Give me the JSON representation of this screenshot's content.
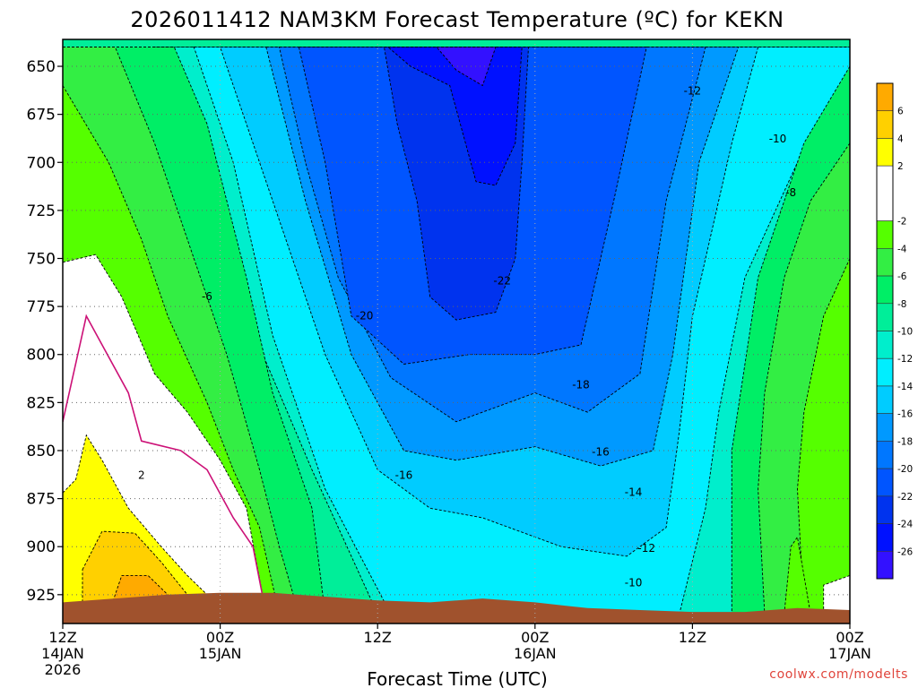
{
  "chart_data": {
    "type": "heatmap",
    "title": "2026011412 NAM3KM Forecast Temperature (ºC) for KEKN",
    "xlabel": "Forecast Time (UTC)",
    "credit": "coolwx.com/modelts",
    "x_ticks": [
      {
        "hours": 0,
        "line1": "12Z",
        "line2": "14JAN",
        "line3": "2026"
      },
      {
        "hours": 12,
        "line1": "00Z",
        "line2": "15JAN",
        "line3": ""
      },
      {
        "hours": 24,
        "line1": "12Z",
        "line2": "",
        "line3": ""
      },
      {
        "hours": 36,
        "line1": "00Z",
        "line2": "16JAN",
        "line3": ""
      },
      {
        "hours": 48,
        "line1": "12Z",
        "line2": "",
        "line3": ""
      },
      {
        "hours": 60,
        "line1": "00Z",
        "line2": "17JAN",
        "line3": ""
      }
    ],
    "xlim_hours": [
      0,
      60
    ],
    "y_ticks": [
      "650",
      "675",
      "700",
      "725",
      "750",
      "775",
      "800",
      "825",
      "850",
      "875",
      "900",
      "925"
    ],
    "ylim_hpa": [
      940,
      636
    ],
    "y_inverted": true,
    "colorbar": {
      "labels": [
        "6",
        "4",
        "2",
        "-2",
        "-4",
        "-6",
        "-8",
        "-10",
        "-12",
        "-14",
        "-16",
        "-18",
        "-20",
        "-22",
        "-24",
        "-26"
      ],
      "bins": [
        {
          "lo": 6,
          "hi": 8,
          "color": "#ffaa00"
        },
        {
          "lo": 4,
          "hi": 6,
          "color": "#ffd000"
        },
        {
          "lo": 2,
          "hi": 4,
          "color": "#ffff00"
        },
        {
          "lo": -2,
          "hi": 2,
          "color": "#ffffff"
        },
        {
          "lo": -4,
          "hi": -2,
          "color": "#55ff00"
        },
        {
          "lo": -6,
          "hi": -4,
          "color": "#33ee44"
        },
        {
          "lo": -8,
          "hi": -6,
          "color": "#00ee66"
        },
        {
          "lo": -10,
          "hi": -8,
          "color": "#00ee99"
        },
        {
          "lo": -12,
          "hi": -10,
          "color": "#00eecc"
        },
        {
          "lo": -14,
          "hi": -12,
          "color": "#00eeff"
        },
        {
          "lo": -16,
          "hi": -14,
          "color": "#00ccff"
        },
        {
          "lo": -18,
          "hi": -16,
          "color": "#0099ff"
        },
        {
          "lo": -20,
          "hi": -18,
          "color": "#0077ff"
        },
        {
          "lo": -22,
          "hi": -20,
          "color": "#0055ff"
        },
        {
          "lo": -24,
          "hi": -22,
          "color": "#0033ee"
        },
        {
          "lo": -26,
          "hi": -24,
          "color": "#0011ff"
        },
        {
          "lo": -28,
          "hi": -26,
          "color": "#3311ff"
        }
      ]
    },
    "contour_labels": [
      {
        "text": "-12",
        "hours": 48.0,
        "hpa": 663
      },
      {
        "text": "-10",
        "hours": 54.5,
        "hpa": 688
      },
      {
        "text": "-8",
        "hours": 55.5,
        "hpa": 716
      },
      {
        "text": "-6",
        "hours": 11.0,
        "hpa": 770
      },
      {
        "text": "-20",
        "hours": 23.0,
        "hpa": 780
      },
      {
        "text": "-22",
        "hours": 33.5,
        "hpa": 762
      },
      {
        "text": "-18",
        "hours": 39.5,
        "hpa": 816
      },
      {
        "text": "-16",
        "hours": 41.0,
        "hpa": 851
      },
      {
        "text": "-16",
        "hours": 26.0,
        "hpa": 863
      },
      {
        "text": "-14",
        "hours": 43.5,
        "hpa": 872
      },
      {
        "text": "-12",
        "hours": 44.5,
        "hpa": 901
      },
      {
        "text": "-10",
        "hours": 43.5,
        "hpa": 919
      },
      {
        "text": "2",
        "hours": 6.0,
        "hpa": 863
      }
    ],
    "bands": [
      {
        "t": "#00ee99",
        "pts": [
          [
            0,
            640
          ],
          [
            60,
            640
          ],
          [
            60,
            935
          ],
          [
            0,
            935
          ]
        ]
      },
      {
        "t": "#00eecc",
        "pts": [
          [
            7,
            640
          ],
          [
            60,
            640
          ],
          [
            60,
            935
          ],
          [
            24,
            935
          ],
          [
            19,
            860
          ],
          [
            14,
            780
          ],
          [
            11,
            700
          ]
        ]
      },
      {
        "t": "#00eeff",
        "pts": [
          [
            10,
            640
          ],
          [
            60,
            640
          ],
          [
            60,
            660
          ],
          [
            56,
            700
          ],
          [
            52,
            760
          ],
          [
            50,
            830
          ],
          [
            49,
            880
          ],
          [
            47,
            935
          ],
          [
            25,
            935
          ],
          [
            20,
            870
          ],
          [
            16,
            790
          ],
          [
            13,
            700
          ]
        ]
      },
      {
        "t": "#00ccff",
        "pts": [
          [
            12,
            640
          ],
          [
            53,
            640
          ],
          [
            51,
            690
          ],
          [
            48,
            780
          ],
          [
            47,
            840
          ],
          [
            46,
            890
          ],
          [
            43,
            905
          ],
          [
            38,
            900
          ],
          [
            32,
            885
          ],
          [
            28,
            880
          ],
          [
            24,
            860
          ],
          [
            20,
            800
          ],
          [
            15,
            700
          ]
        ]
      },
      {
        "t": "#0099ff",
        "pts": [
          [
            15.5,
            640
          ],
          [
            51.5,
            640
          ],
          [
            48.5,
            700
          ],
          [
            46.5,
            800
          ],
          [
            45,
            850
          ],
          [
            41,
            858
          ],
          [
            36,
            848
          ],
          [
            30,
            855
          ],
          [
            26,
            850
          ],
          [
            22,
            800
          ],
          [
            18.5,
            720
          ]
        ]
      },
      {
        "t": "#0077ff",
        "pts": [
          [
            16.5,
            640
          ],
          [
            49,
            640
          ],
          [
            46,
            720
          ],
          [
            44,
            810
          ],
          [
            40,
            830
          ],
          [
            36,
            820
          ],
          [
            30,
            835
          ],
          [
            25,
            812
          ],
          [
            21,
            760
          ],
          [
            18.5,
            700
          ]
        ]
      },
      {
        "t": "#0055ff",
        "pts": [
          [
            18,
            640
          ],
          [
            44.5,
            640
          ],
          [
            42,
            720
          ],
          [
            39.5,
            795
          ],
          [
            36,
            800
          ],
          [
            31,
            800
          ],
          [
            26,
            805
          ],
          [
            22,
            780
          ],
          [
            20,
            700
          ]
        ]
      },
      {
        "t": "#0033ee",
        "pts": [
          [
            24.5,
            640
          ],
          [
            35.5,
            640
          ],
          [
            35,
            700
          ],
          [
            34.5,
            750
          ],
          [
            33,
            778
          ],
          [
            30,
            782
          ],
          [
            28,
            770
          ],
          [
            27,
            720
          ],
          [
            25.5,
            680
          ]
        ]
      },
      {
        "t": "#0011ff",
        "pts": [
          [
            24.8,
            640
          ],
          [
            35,
            640
          ],
          [
            34.5,
            690
          ],
          [
            33,
            712
          ],
          [
            31.5,
            710
          ],
          [
            29.5,
            660
          ],
          [
            26.5,
            650
          ]
        ]
      },
      {
        "t": "#3311ff",
        "pts": [
          [
            28.5,
            640
          ],
          [
            33,
            640
          ],
          [
            32,
            660
          ],
          [
            30,
            652
          ]
        ]
      },
      {
        "t": "#00ee66",
        "pts": [
          [
            0,
            640
          ],
          [
            8.5,
            640
          ],
          [
            11,
            680
          ],
          [
            14,
            760
          ],
          [
            16,
            820
          ],
          [
            19,
            880
          ],
          [
            20,
            935
          ],
          [
            0,
            935
          ]
        ]
      },
      {
        "t": "#00ee66",
        "pts": [
          [
            60,
            650
          ],
          [
            56.5,
            690
          ],
          [
            53,
            760
          ],
          [
            51,
            850
          ],
          [
            51,
            935
          ],
          [
            60,
            935
          ]
        ]
      },
      {
        "t": "#33ee44",
        "pts": [
          [
            0,
            640
          ],
          [
            4,
            640
          ],
          [
            7,
            690
          ],
          [
            10,
            750
          ],
          [
            12.5,
            800
          ],
          [
            15,
            860
          ],
          [
            16.5,
            900
          ],
          [
            18,
            935
          ],
          [
            0,
            935
          ]
        ]
      },
      {
        "t": "#33ee44",
        "pts": [
          [
            60,
            690
          ],
          [
            57,
            720
          ],
          [
            55,
            760
          ],
          [
            53.5,
            820
          ],
          [
            53,
            870
          ],
          [
            53.5,
            935
          ],
          [
            60,
            935
          ]
        ]
      },
      {
        "t": "#55ff00",
        "pts": [
          [
            0,
            660
          ],
          [
            3.5,
            700
          ],
          [
            6,
            740
          ],
          [
            8,
            780
          ],
          [
            11,
            825
          ],
          [
            13,
            860
          ],
          [
            15,
            890
          ],
          [
            16.5,
            935
          ],
          [
            0,
            935
          ]
        ]
      },
      {
        "t": "#55ff00",
        "pts": [
          [
            60,
            750
          ],
          [
            58,
            780
          ],
          [
            56.5,
            830
          ],
          [
            56,
            870
          ],
          [
            56.5,
            935
          ],
          [
            60,
            935
          ]
        ]
      },
      {
        "t": "#ffffff",
        "pts": [
          [
            0,
            752
          ],
          [
            2.5,
            748
          ],
          [
            4.5,
            770
          ],
          [
            7,
            810
          ],
          [
            9.5,
            830
          ],
          [
            12,
            855
          ],
          [
            14,
            880
          ],
          [
            15.5,
            935
          ],
          [
            0,
            935
          ]
        ]
      },
      {
        "t": "#ffffff",
        "pts": [
          [
            60,
            915
          ],
          [
            58,
            920
          ],
          [
            58,
            935
          ],
          [
            60,
            935
          ]
        ]
      },
      {
        "t": "#55ff00",
        "pts": [
          [
            55,
            935
          ],
          [
            55.5,
            900
          ],
          [
            56,
            895
          ],
          [
            57,
            935
          ]
        ]
      },
      {
        "t": "#ffff00",
        "pts": [
          [
            0,
            872
          ],
          [
            1,
            865
          ],
          [
            1.8,
            842
          ],
          [
            3,
            855
          ],
          [
            5,
            880
          ],
          [
            7.5,
            900
          ],
          [
            9.5,
            915
          ],
          [
            11,
            925
          ],
          [
            11.5,
            935
          ],
          [
            0,
            935
          ]
        ]
      },
      {
        "t": "#ffd000",
        "pts": [
          [
            1.5,
            912
          ],
          [
            3,
            892
          ],
          [
            5.5,
            893
          ],
          [
            7.5,
            908
          ],
          [
            9.5,
            925
          ],
          [
            10,
            935
          ],
          [
            1.5,
            935
          ]
        ]
      },
      {
        "t": "#ffaa00",
        "pts": [
          [
            3.5,
            935
          ],
          [
            4.5,
            915
          ],
          [
            6.5,
            915
          ],
          [
            8,
            925
          ],
          [
            8.5,
            935
          ]
        ]
      }
    ],
    "ground": [
      [
        0,
        929
      ],
      [
        4,
        927
      ],
      [
        8,
        925
      ],
      [
        12,
        924
      ],
      [
        16,
        924
      ],
      [
        20,
        926
      ],
      [
        24,
        928
      ],
      [
        28,
        929
      ],
      [
        32,
        927
      ],
      [
        36,
        929
      ],
      [
        40,
        932
      ],
      [
        44,
        933
      ],
      [
        48,
        934
      ],
      [
        52,
        934
      ],
      [
        56,
        932
      ],
      [
        60,
        933
      ],
      [
        60,
        940
      ],
      [
        0,
        940
      ]
    ]
  }
}
